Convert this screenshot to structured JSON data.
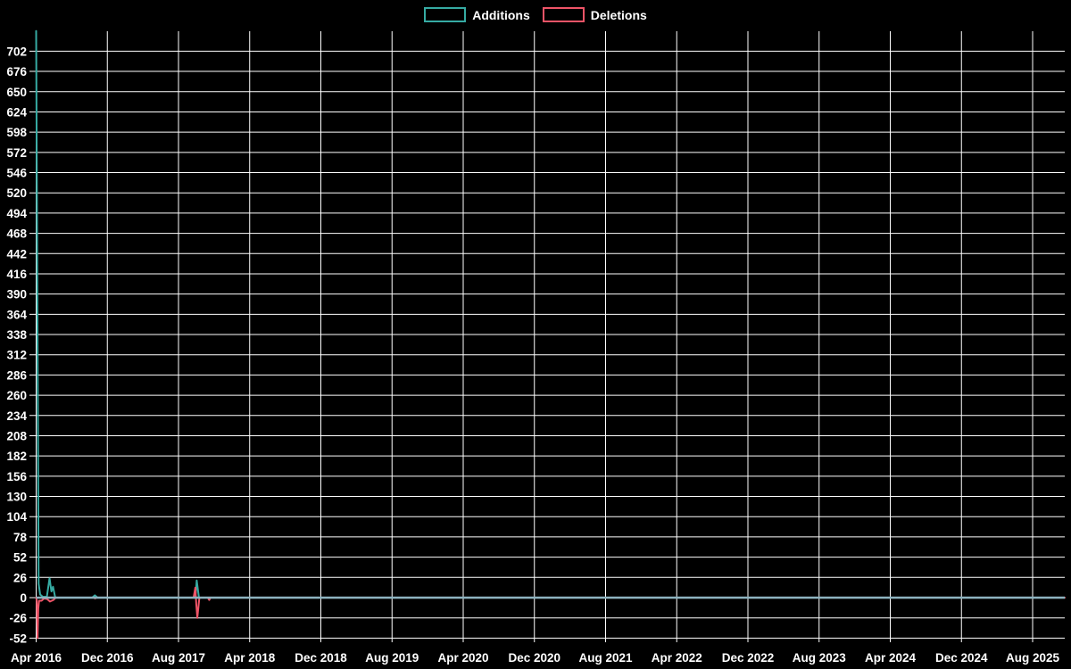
{
  "legend": {
    "items": [
      {
        "label": "Additions",
        "color": "#36aba3"
      },
      {
        "label": "Deletions",
        "color": "#ef5467"
      }
    ]
  },
  "colors": {
    "background": "#000000",
    "grid": "#ffffff",
    "text": "#ffffff",
    "zero_line": "#8db3c0",
    "additions": "#36aba3",
    "deletions": "#ef5467"
  },
  "chart_data": {
    "type": "line",
    "title": "",
    "x_tick_labels": [
      "Apr 2016",
      "Dec 2016",
      "Aug 2017",
      "Apr 2018",
      "Dec 2018",
      "Aug 2019",
      "Apr 2020",
      "Dec 2020",
      "Aug 2021",
      "Apr 2022",
      "Dec 2022",
      "Aug 2023",
      "Apr 2024",
      "Dec 2024",
      "Aug 2025"
    ],
    "months_per_x_tick": 8,
    "y_tick_labels": [
      702,
      676,
      650,
      624,
      598,
      572,
      546,
      520,
      494,
      468,
      442,
      416,
      390,
      364,
      338,
      312,
      286,
      260,
      234,
      208,
      182,
      156,
      130,
      104,
      78,
      52,
      26,
      0,
      -26,
      -52
    ],
    "y_tick_step": 26,
    "ylim": [
      -57,
      728
    ],
    "grid": true,
    "legend_position": "top-center",
    "series": [
      {
        "name": "Additions",
        "color": "#36aba3",
        "points": [
          [
            0,
            728
          ],
          [
            0.28,
            18
          ],
          [
            0.45,
            4
          ],
          [
            0.75,
            1
          ],
          [
            1.2,
            1
          ],
          [
            1.5,
            25
          ],
          [
            1.72,
            8
          ],
          [
            1.9,
            14
          ],
          [
            2.15,
            0
          ],
          [
            6.3,
            0
          ],
          [
            6.6,
            3
          ],
          [
            6.9,
            0
          ],
          [
            17.75,
            0
          ],
          [
            17.95,
            6
          ],
          [
            18.05,
            22
          ],
          [
            18.3,
            0
          ],
          [
            115.6,
            0
          ]
        ]
      },
      {
        "name": "Deletions",
        "color": "#ef5467",
        "points": [
          [
            0,
            0
          ],
          [
            0.07,
            -4
          ],
          [
            0.16,
            -52
          ],
          [
            0.24,
            -14
          ],
          [
            0.33,
            -4
          ],
          [
            0.6,
            -4
          ],
          [
            0.9,
            -1
          ],
          [
            1.25,
            -2
          ],
          [
            1.55,
            -5
          ],
          [
            1.95,
            -3
          ],
          [
            2.2,
            0
          ],
          [
            6.5,
            0
          ],
          [
            6.62,
            -1
          ],
          [
            6.8,
            0
          ],
          [
            17.7,
            0
          ],
          [
            17.9,
            13
          ],
          [
            18.0,
            -8
          ],
          [
            18.12,
            -26
          ],
          [
            18.35,
            0
          ],
          [
            19.3,
            0
          ],
          [
            19.45,
            -3
          ],
          [
            19.6,
            0
          ],
          [
            115.6,
            0
          ]
        ]
      }
    ],
    "notable_events": [
      {
        "date": "Apr 2016",
        "additions": 728,
        "deletions": -52
      },
      {
        "date": "Jun 2016",
        "additions": 25,
        "deletions": -5
      },
      {
        "date": "Nov 2016",
        "additions": 3,
        "deletions": -1
      },
      {
        "date": "Oct 2017",
        "additions": 22,
        "deletions": -26
      }
    ]
  }
}
